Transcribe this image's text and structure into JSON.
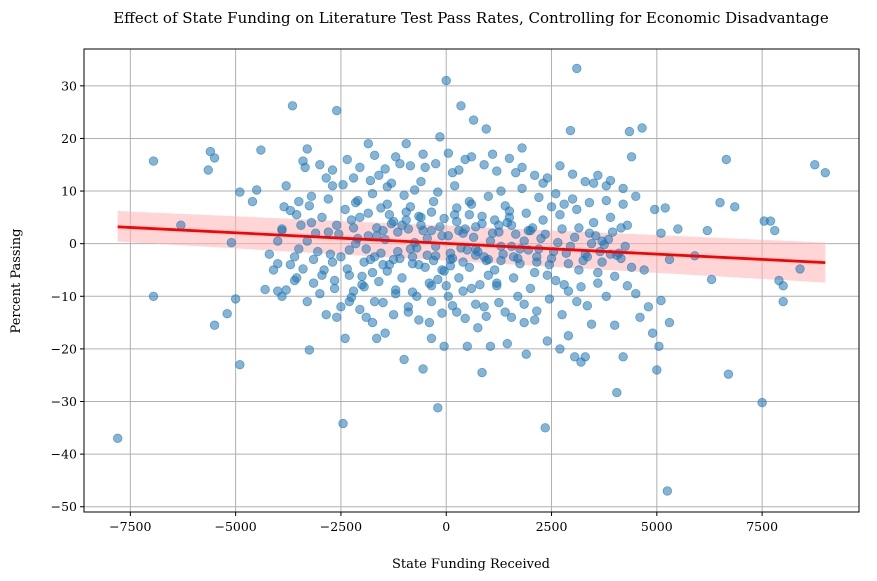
{
  "chart_data": {
    "type": "scatter",
    "title": "Effect of State Funding on Literature Test Pass Rates, Controlling for Economic Disadvantage",
    "xlabel": "State Funding Received",
    "ylabel": "Percent Passing",
    "xlim": [
      -8600,
      9800
    ],
    "ylim": [
      -51,
      37
    ],
    "xticks": [
      -7500,
      -5000,
      -2500,
      0,
      2500,
      5000,
      7500
    ],
    "xtick_labels": [
      "−7500",
      "−5000",
      "−2500",
      "0",
      "2500",
      "5000",
      "7500"
    ],
    "yticks": [
      -50,
      -40,
      -30,
      -20,
      -10,
      0,
      10,
      20,
      30
    ],
    "ytick_labels": [
      "−50",
      "−40",
      "−30",
      "−20",
      "−10",
      "0",
      "10",
      "20",
      "30"
    ],
    "grid": true,
    "point_color": "#1f77b4",
    "regression": {
      "x": [
        -7800,
        9000
      ],
      "y": [
        3.2,
        -3.6
      ],
      "ci_upper": [
        6.2,
        0.2
      ],
      "ci_lower": [
        0.4,
        -7.4
      ],
      "line_color": "#ff0000",
      "band_color": "#ffb3b3"
    },
    "points": [
      [
        -7800,
        -37
      ],
      [
        -6950,
        15.7
      ],
      [
        -6950,
        -10
      ],
      [
        -6300,
        3.5
      ],
      [
        -5650,
        14
      ],
      [
        -5600,
        17.5
      ],
      [
        -5500,
        16.3
      ],
      [
        -5500,
        -15.5
      ],
      [
        -5200,
        -13.3
      ],
      [
        -5100,
        0.2
      ],
      [
        -5000,
        -10.5
      ],
      [
        -4900,
        9.8
      ],
      [
        -4900,
        -23
      ],
      [
        -4600,
        8
      ],
      [
        -4500,
        10.2
      ],
      [
        -4400,
        17.8
      ],
      [
        -4300,
        -8.7
      ],
      [
        -4000,
        -9
      ],
      [
        -4000,
        -3.8
      ],
      [
        -3900,
        -10
      ],
      [
        -3900,
        2.5
      ],
      [
        -3850,
        7
      ],
      [
        -3800,
        -8.8
      ],
      [
        -3700,
        6.3
      ],
      [
        -3650,
        26.2
      ],
      [
        -3600,
        -2.5
      ],
      [
        -3550,
        5.5
      ],
      [
        -3500,
        8
      ],
      [
        -3400,
        15.7
      ],
      [
        -3350,
        14.5
      ],
      [
        -3300,
        18
      ],
      [
        -3250,
        -20.2
      ],
      [
        -3200,
        4
      ],
      [
        -3150,
        -3
      ],
      [
        -3000,
        15
      ],
      [
        -2900,
        -5
      ],
      [
        -2850,
        -13.5
      ],
      [
        -2800,
        8.5
      ],
      [
        -2700,
        11
      ],
      [
        -2650,
        -7
      ],
      [
        -2600,
        25.3
      ],
      [
        -2500,
        -12
      ],
      [
        -2450,
        -34.2
      ],
      [
        -2400,
        -18
      ],
      [
        -2300,
        -6
      ],
      [
        -2250,
        4.5
      ],
      [
        -2200,
        12.5
      ],
      [
        -2100,
        1
      ],
      [
        -2000,
        -7.8
      ],
      [
        -1900,
        -14
      ],
      [
        -1850,
        19
      ],
      [
        -1800,
        -3
      ],
      [
        -1750,
        9.5
      ],
      [
        -1700,
        -11
      ],
      [
        -1600,
        13
      ],
      [
        -1500,
        2.5
      ],
      [
        -1450,
        -17
      ],
      [
        -1400,
        7.5
      ],
      [
        -1350,
        -4
      ],
      [
        -1300,
        11.5
      ],
      [
        -1200,
        -9.5
      ],
      [
        -1100,
        15.2
      ],
      [
        -1050,
        3.5
      ],
      [
        -1000,
        -22
      ],
      [
        -950,
        19
      ],
      [
        -900,
        -13
      ],
      [
        -850,
        7
      ],
      [
        -800,
        -2.5
      ],
      [
        -750,
        10.2
      ],
      [
        -700,
        -10
      ],
      [
        -600,
        5
      ],
      [
        -550,
        -23.8
      ],
      [
        -500,
        14.5
      ],
      [
        -450,
        1
      ],
      [
        -400,
        -15
      ],
      [
        -350,
        -8
      ],
      [
        -300,
        8
      ],
      [
        -250,
        -2.3
      ],
      [
        -200,
        -31.2
      ],
      [
        -150,
        20.3
      ],
      [
        -100,
        -5
      ],
      [
        -50,
        -19.5
      ],
      [
        0,
        31
      ],
      [
        50,
        -10
      ],
      [
        100,
        -3
      ],
      [
        150,
        13.5
      ],
      [
        200,
        5.5
      ],
      [
        250,
        -13
      ],
      [
        300,
        -6.5
      ],
      [
        350,
        26.2
      ],
      [
        400,
        2
      ],
      [
        450,
        16
      ],
      [
        500,
        -19.5
      ],
      [
        550,
        8
      ],
      [
        600,
        -8.5
      ],
      [
        650,
        23.5
      ],
      [
        700,
        -1
      ],
      [
        750,
        -16
      ],
      [
        850,
        -24.5
      ],
      [
        900,
        -12
      ],
      [
        950,
        21.8
      ],
      [
        1000,
        -3
      ],
      [
        1100,
        17
      ],
      [
        1200,
        -7.5
      ],
      [
        1250,
        3.5
      ],
      [
        1300,
        10
      ],
      [
        1400,
        -13
      ],
      [
        1450,
        -19
      ],
      [
        1500,
        5
      ],
      [
        1600,
        -2.5
      ],
      [
        1650,
        13.5
      ],
      [
        1700,
        -10
      ],
      [
        1800,
        18.2
      ],
      [
        1850,
        -15
      ],
      [
        1900,
        -21
      ],
      [
        2000,
        2.5
      ],
      [
        2100,
        -14.5
      ],
      [
        2200,
        -1
      ],
      [
        2300,
        11.5
      ],
      [
        2350,
        -35
      ],
      [
        2400,
        -18.5
      ],
      [
        2500,
        7
      ],
      [
        2600,
        -7
      ],
      [
        2700,
        -20
      ],
      [
        2800,
        7.5
      ],
      [
        2900,
        -9
      ],
      [
        2950,
        21.5
      ],
      [
        3050,
        -21.5
      ],
      [
        3100,
        33.3
      ],
      [
        3150,
        -5
      ],
      [
        3200,
        -22.5
      ],
      [
        3300,
        -21.5
      ],
      [
        3350,
        -11.8
      ],
      [
        3400,
        2
      ],
      [
        3450,
        -15.3
      ],
      [
        3500,
        11.5
      ],
      [
        3600,
        -7.5
      ],
      [
        3700,
        0.5
      ],
      [
        3800,
        11
      ],
      [
        3900,
        -2
      ],
      [
        4000,
        -15.5
      ],
      [
        4050,
        -28.3
      ],
      [
        4150,
        3
      ],
      [
        4200,
        -21.5
      ],
      [
        4300,
        -8
      ],
      [
        4350,
        21.3
      ],
      [
        4400,
        16.5
      ],
      [
        4500,
        9
      ],
      [
        4650,
        22
      ],
      [
        4800,
        -12
      ],
      [
        4950,
        6.5
      ],
      [
        5000,
        -24
      ],
      [
        5050,
        -19.5
      ],
      [
        5100,
        -10.8
      ],
      [
        5200,
        6.8
      ],
      [
        5250,
        -47
      ],
      [
        5300,
        -3
      ],
      [
        5500,
        2.8
      ],
      [
        5900,
        -2.3
      ],
      [
        6200,
        2.5
      ],
      [
        6300,
        -6.8
      ],
      [
        6500,
        7.8
      ],
      [
        6650,
        16
      ],
      [
        6700,
        -24.8
      ],
      [
        6850,
        7
      ],
      [
        7500,
        -30.2
      ],
      [
        7550,
        4.3
      ],
      [
        7700,
        4.3
      ],
      [
        7800,
        2.5
      ],
      [
        7900,
        -7
      ],
      [
        8000,
        -11
      ],
      [
        8000,
        -8
      ],
      [
        8400,
        -4.8
      ],
      [
        8750,
        15
      ],
      [
        9000,
        13.5
      ],
      [
        -3500,
        -1
      ],
      [
        -3300,
        0.5
      ],
      [
        -3100,
        2
      ],
      [
        -2950,
        -6
      ],
      [
        -2750,
        -2
      ],
      [
        -2600,
        3.5
      ],
      [
        -2400,
        6.5
      ],
      [
        -2300,
        -1.2
      ],
      [
        -2150,
        0
      ],
      [
        -2050,
        5
      ],
      [
        -1950,
        -3.5
      ],
      [
        -1850,
        1.5
      ],
      [
        -1750,
        -5.5
      ],
      [
        -1650,
        3
      ],
      [
        -1550,
        -1.8
      ],
      [
        -1450,
        0.8
      ],
      [
        -1350,
        5.5
      ],
      [
        -1250,
        -3
      ],
      [
        -1150,
        2.2
      ],
      [
        -1050,
        -6.5
      ],
      [
        -950,
        4.5
      ],
      [
        -850,
        -1
      ],
      [
        -750,
        0.2
      ],
      [
        -650,
        -4
      ],
      [
        -550,
        2.5
      ],
      [
        -450,
        -2.2
      ],
      [
        -350,
        6
      ],
      [
        -250,
        -0.5
      ],
      [
        -150,
        3.2
      ],
      [
        -50,
        -5.2
      ],
      [
        50,
        1.5
      ],
      [
        150,
        -2.8
      ],
      [
        250,
        4.2
      ],
      [
        350,
        -0.8
      ],
      [
        450,
        2.8
      ],
      [
        550,
        -4.5
      ],
      [
        650,
        1.2
      ],
      [
        750,
        -1.5
      ],
      [
        850,
        5.2
      ],
      [
        950,
        -3.2
      ],
      [
        1050,
        0.5
      ],
      [
        1150,
        -5
      ],
      [
        1250,
        2.2
      ],
      [
        1350,
        -2
      ],
      [
        1450,
        4
      ],
      [
        1550,
        -0.5
      ],
      [
        1650,
        1.8
      ],
      [
        1750,
        -3.8
      ],
      [
        1850,
        0.5
      ],
      [
        1950,
        -1.2
      ],
      [
        2050,
        3
      ],
      [
        2150,
        -2.5
      ],
      [
        2250,
        1
      ],
      [
        2450,
        -4
      ],
      [
        2650,
        0.2
      ],
      [
        2850,
        -1.8
      ],
      [
        3050,
        1.2
      ],
      [
        3250,
        -3.2
      ],
      [
        3450,
        0
      ],
      [
        3650,
        -1.5
      ],
      [
        3850,
        0.8
      ],
      [
        4050,
        -2.2
      ],
      [
        4250,
        -0.5
      ],
      [
        -3800,
        11
      ],
      [
        -3600,
        -7
      ],
      [
        -3400,
        -4.8
      ],
      [
        -3200,
        9
      ],
      [
        -3000,
        -9.5
      ],
      [
        -2850,
        12.5
      ],
      [
        -2650,
        -8.5
      ],
      [
        -2450,
        11.2
      ],
      [
        -2250,
        -10.2
      ],
      [
        -2100,
        8.2
      ],
      [
        -1950,
        -8.2
      ],
      [
        -1800,
        12
      ],
      [
        -1600,
        -7.2
      ],
      [
        -1400,
        10.8
      ],
      [
        -1200,
        -8.8
      ],
      [
        -1000,
        9.2
      ],
      [
        -800,
        -9.2
      ],
      [
        -600,
        11.8
      ],
      [
        -400,
        -7.5
      ],
      [
        -200,
        9.8
      ],
      [
        0,
        -8
      ],
      [
        200,
        11
      ],
      [
        400,
        -9
      ],
      [
        600,
        7.5
      ],
      [
        800,
        -7.8
      ],
      [
        1000,
        9
      ],
      [
        1200,
        -8
      ],
      [
        1400,
        7.2
      ],
      [
        1600,
        -6.5
      ],
      [
        1800,
        10.5
      ],
      [
        2000,
        -8.5
      ],
      [
        2200,
        8.8
      ],
      [
        2400,
        -6
      ],
      [
        2600,
        9.5
      ],
      [
        2800,
        -7.8
      ],
      [
        3000,
        8.5
      ],
      [
        3200,
        -8.2
      ],
      [
        3400,
        7.8
      ],
      [
        3600,
        -5.5
      ],
      [
        3800,
        8.2
      ],
      [
        4000,
        -6.2
      ],
      [
        4200,
        7.5
      ],
      [
        4400,
        -4.5
      ],
      [
        -3700,
        -4
      ],
      [
        -3450,
        3.5
      ],
      [
        -3150,
        -7.5
      ],
      [
        -2950,
        5
      ],
      [
        -2700,
        -3.5
      ],
      [
        -2550,
        1.8
      ],
      [
        -2350,
        -4.8
      ],
      [
        -2150,
        7.8
      ],
      [
        -2000,
        -6.2
      ],
      [
        -1850,
        5.8
      ],
      [
        -1700,
        -2.5
      ],
      [
        -1550,
        6.8
      ],
      [
        -1400,
        -5.2
      ],
      [
        -1250,
        4.2
      ],
      [
        -1100,
        -2.8
      ],
      [
        -950,
        6
      ],
      [
        -800,
        -3.8
      ],
      [
        -650,
        5.2
      ],
      [
        -500,
        -4.5
      ],
      [
        -350,
        2.5
      ],
      [
        -200,
        -6.8
      ],
      [
        -50,
        4.8
      ],
      [
        100,
        -4.2
      ],
      [
        250,
        6.8
      ],
      [
        400,
        -3.5
      ],
      [
        550,
        5.5
      ],
      [
        700,
        -2.2
      ],
      [
        850,
        3.8
      ],
      [
        1000,
        -6
      ],
      [
        1150,
        4.5
      ],
      [
        1300,
        -3.2
      ],
      [
        1500,
        6.2
      ],
      [
        1700,
        -2.8
      ],
      [
        1900,
        5.8
      ],
      [
        2100,
        -5.5
      ],
      [
        2300,
        4.5
      ],
      [
        2500,
        -2.8
      ],
      [
        2700,
        5.5
      ],
      [
        2900,
        -3.8
      ],
      [
        3100,
        6.5
      ],
      [
        3300,
        -2
      ],
      [
        3500,
        4
      ],
      [
        3700,
        -3.5
      ],
      [
        3900,
        5
      ],
      [
        4100,
        -1.8
      ],
      [
        4300,
        3.5
      ],
      [
        -3900,
        2.8
      ],
      [
        -3550,
        -6.5
      ],
      [
        -3250,
        7.2
      ],
      [
        -3050,
        -1.5
      ],
      [
        -2800,
        2.2
      ],
      [
        -2500,
        -2.5
      ],
      [
        -2200,
        3
      ],
      [
        -1900,
        -1
      ],
      [
        -1650,
        1.5
      ],
      [
        -1500,
        -4
      ],
      [
        -1300,
        3.8
      ],
      [
        -1150,
        -1.5
      ],
      [
        -900,
        2.8
      ],
      [
        -700,
        -0.8
      ],
      [
        -600,
        3.5
      ],
      [
        -300,
        -3.2
      ],
      [
        -100,
        1.5
      ],
      [
        100,
        -1.8
      ],
      [
        300,
        2.5
      ],
      [
        500,
        -1.2
      ],
      [
        700,
        3.2
      ],
      [
        900,
        -2.5
      ],
      [
        1100,
        2
      ],
      [
        1300,
        -0.5
      ],
      [
        1550,
        3.5
      ],
      [
        1750,
        -1
      ],
      [
        1950,
        2.5
      ],
      [
        2150,
        -3.5
      ],
      [
        2350,
        1.8
      ],
      [
        2550,
        -1.5
      ],
      [
        2750,
        2.8
      ],
      [
        2950,
        -0.5
      ],
      [
        3150,
        3
      ],
      [
        3350,
        -2.5
      ],
      [
        3550,
        1.5
      ],
      [
        3750,
        -0.2
      ],
      [
        3950,
        2.2
      ],
      [
        4150,
        -2.8
      ],
      [
        -2600,
        -14
      ],
      [
        -2300,
        -11
      ],
      [
        -2050,
        -12.5
      ],
      [
        -1750,
        -15
      ],
      [
        -1500,
        -11.2
      ],
      [
        -1250,
        -13.5
      ],
      [
        -900,
        -12
      ],
      [
        -650,
        -14.5
      ],
      [
        -350,
        -11
      ],
      [
        -100,
        -13.2
      ],
      [
        150,
        -11.8
      ],
      [
        450,
        -14.2
      ],
      [
        700,
        -11.5
      ],
      [
        950,
        -13.8
      ],
      [
        1250,
        -11.2
      ],
      [
        1550,
        -14
      ],
      [
        1850,
        -11.5
      ],
      [
        2150,
        -12.8
      ],
      [
        2450,
        -10.5
      ],
      [
        2750,
        -13.5
      ],
      [
        3100,
        -11
      ],
      [
        -2700,
        14
      ],
      [
        -2350,
        16
      ],
      [
        -2050,
        14.5
      ],
      [
        -1700,
        16.8
      ],
      [
        -1450,
        14.2
      ],
      [
        -1200,
        16.5
      ],
      [
        -850,
        14.8
      ],
      [
        -550,
        17
      ],
      [
        -250,
        15.2
      ],
      [
        50,
        17.2
      ],
      [
        300,
        14
      ],
      [
        600,
        16.5
      ],
      [
        900,
        15
      ],
      [
        1200,
        13.8
      ],
      [
        1500,
        16.2
      ],
      [
        1800,
        14.5
      ],
      [
        2100,
        13
      ],
      [
        2400,
        12.5
      ],
      [
        2700,
        14.8
      ],
      [
        3000,
        13.2
      ],
      [
        3300,
        11.8
      ],
      [
        3600,
        13
      ],
      [
        3900,
        12
      ],
      [
        4200,
        10.5
      ],
      [
        4500,
        -9.5
      ],
      [
        4700,
        -5
      ],
      [
        4900,
        -17
      ],
      [
        5100,
        2
      ],
      [
        -4200,
        -2
      ],
      [
        -4100,
        -5
      ],
      [
        -4000,
        0.5
      ],
      [
        -3300,
        -11
      ],
      [
        2900,
        -17.5
      ],
      [
        3800,
        -10
      ],
      [
        4600,
        -14
      ],
      [
        5300,
        -15
      ],
      [
        -2200,
        -9
      ],
      [
        -1650,
        -18
      ],
      [
        -350,
        -18
      ],
      [
        1050,
        -19.5
      ]
    ]
  }
}
